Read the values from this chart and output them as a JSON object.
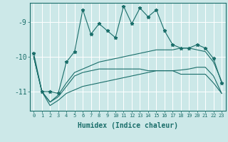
{
  "title": "",
  "xlabel": "Humidex (Indice chaleur)",
  "ylabel": "",
  "bg_color": "#cce8e8",
  "grid_color": "#ffffff",
  "line_color": "#1a6e6a",
  "xlim": [
    -0.5,
    23.5
  ],
  "ylim": [
    -11.55,
    -8.45
  ],
  "yticks": [
    -11,
    -10,
    -9
  ],
  "ytick_labels": [
    "-11",
    "-10",
    "-9"
  ],
  "x": [
    0,
    1,
    2,
    3,
    4,
    5,
    6,
    7,
    8,
    9,
    10,
    11,
    12,
    13,
    14,
    15,
    16,
    17,
    18,
    19,
    20,
    21,
    22,
    23
  ],
  "line1_y": [
    -9.9,
    -11.0,
    -11.0,
    -11.05,
    -10.15,
    -9.85,
    -8.65,
    -9.35,
    -9.05,
    -9.25,
    -9.45,
    -8.55,
    -9.05,
    -8.6,
    -8.85,
    -8.65,
    -9.25,
    -9.65,
    -9.75,
    -9.75,
    -9.65,
    -9.75,
    -10.05,
    -10.75
  ],
  "line2_y": [
    -10.0,
    -11.0,
    -11.3,
    -11.1,
    -10.75,
    -10.45,
    -10.35,
    -10.25,
    -10.15,
    -10.1,
    -10.05,
    -10.0,
    -9.95,
    -9.9,
    -9.85,
    -9.8,
    -9.8,
    -9.8,
    -9.75,
    -9.75,
    -9.8,
    -9.85,
    -10.15,
    -10.7
  ],
  "line3_y": [
    -10.0,
    -11.0,
    -11.3,
    -11.15,
    -10.85,
    -10.55,
    -10.45,
    -10.4,
    -10.35,
    -10.35,
    -10.35,
    -10.35,
    -10.35,
    -10.35,
    -10.4,
    -10.4,
    -10.4,
    -10.4,
    -10.5,
    -10.5,
    -10.5,
    -10.5,
    -10.75,
    -11.05
  ],
  "line4_y": [
    -10.0,
    -11.0,
    -11.4,
    -11.25,
    -11.05,
    -10.95,
    -10.85,
    -10.8,
    -10.75,
    -10.7,
    -10.65,
    -10.6,
    -10.55,
    -10.5,
    -10.45,
    -10.4,
    -10.4,
    -10.4,
    -10.38,
    -10.35,
    -10.3,
    -10.3,
    -10.55,
    -11.05
  ]
}
